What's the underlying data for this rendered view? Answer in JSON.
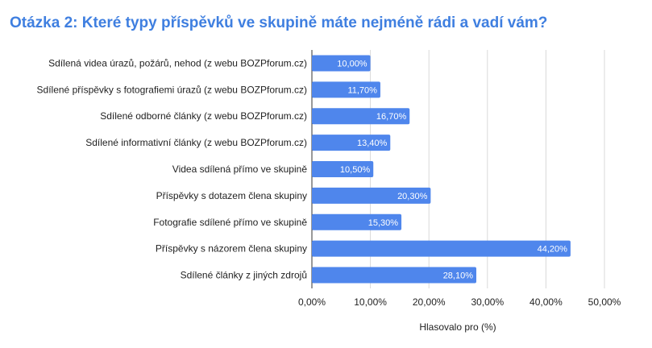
{
  "chart_data": {
    "type": "bar",
    "orientation": "horizontal",
    "title": "Otázka 2: Které typy příspěvků ve skupině máte nejméně rádi a vadí vám?",
    "xlabel": "Hlasovalo pro (%)",
    "ylabel": "",
    "categories": [
      "Sdílená videa úrazů, požárů, nehod (z webu BOZPforum.cz)",
      "Sdílené příspěvky s fotografiemi úrazů (z webu BOZPforum.cz)",
      "Sdílené odborné články (z webu BOZPforum.cz)",
      "Sdílené informativní články (z webu BOZPforum.cz)",
      "Videa sdílená přímo ve skupině",
      "Příspěvky s dotazem člena skupiny",
      "Fotografie sdílené přímo ve skupině",
      "Příspěvky s názorem člena skupiny",
      "Sdílené články z jiných zdrojů"
    ],
    "values": [
      10.0,
      11.7,
      16.7,
      13.4,
      10.5,
      20.3,
      15.3,
      44.2,
      28.1
    ],
    "value_labels": [
      "10,00%",
      "11,70%",
      "16,70%",
      "13,40%",
      "10,50%",
      "20,30%",
      "15,30%",
      "44,20%",
      "28,10%"
    ],
    "xlim": [
      0,
      50
    ],
    "xticks": [
      "0,00%",
      "10,00%",
      "20,00%",
      "30,00%",
      "40,00%",
      "50,00%"
    ],
    "grid": "vertical",
    "legend": "none",
    "bar_color": "#4f86ec",
    "title_color": "#3f7fe0",
    "grid_color": "#d9d9d9"
  }
}
